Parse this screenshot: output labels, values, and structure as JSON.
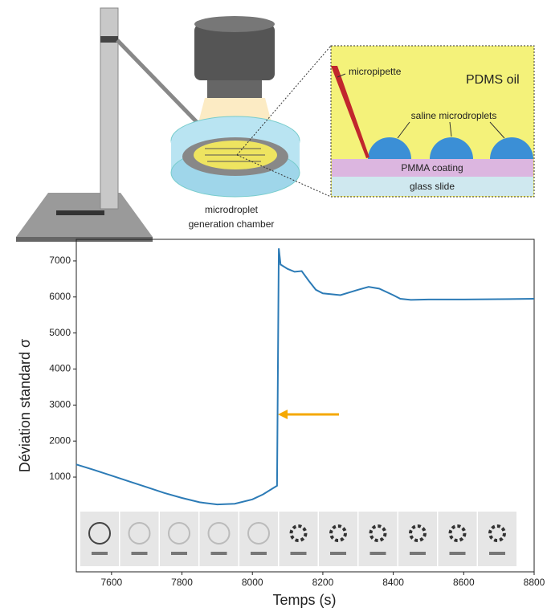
{
  "diagram": {
    "micropipette": "micropipette",
    "oil": "PDMS oil",
    "droplets": "saline microdroplets",
    "coating": "PMMA coating",
    "slide": "glass slide",
    "chamber": [
      "microdroplet",
      "generation chamber"
    ]
  },
  "chart_data": {
    "type": "line",
    "xlabel": "Temps (s)",
    "ylabel": "Déviation standard σ",
    "x": [
      7500,
      7550,
      7600,
      7650,
      7700,
      7750,
      7800,
      7850,
      7900,
      7950,
      8000,
      8030,
      8060,
      8070,
      8075,
      8080,
      8100,
      8120,
      8140,
      8160,
      8180,
      8200,
      8250,
      8300,
      8330,
      8360,
      8400,
      8420,
      8450,
      8500,
      8600,
      8700,
      8800
    ],
    "series": [
      {
        "color": "#2c7bb6",
        "values": [
          1350,
          1200,
          1040,
          880,
          720,
          560,
          420,
          300,
          240,
          260,
          380,
          520,
          700,
          760,
          7350,
          6900,
          6780,
          6700,
          6720,
          6450,
          6200,
          6100,
          6050,
          6200,
          6280,
          6230,
          6050,
          5950,
          5920,
          5930,
          5930,
          5940,
          5950
        ]
      }
    ],
    "xlim": [
      7500,
      8800
    ],
    "xticks": [
      7600,
      7800,
      8000,
      8200,
      8400,
      8600,
      8800
    ],
    "ylim": [
      -1630,
      7600
    ],
    "yticks": [
      1000,
      2000,
      3000,
      4000,
      5000,
      6000,
      7000
    ]
  }
}
